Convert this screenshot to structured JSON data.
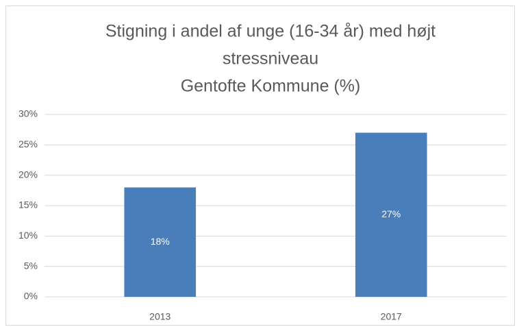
{
  "chart_data": {
    "type": "bar",
    "title": [
      "Stigning i andel af unge (16-34 år) med højt",
      "stressniveau",
      "Gentofte Kommune (%)"
    ],
    "categories": [
      "2013",
      "2017"
    ],
    "values": [
      18,
      27
    ],
    "value_labels": [
      "18%",
      "27%"
    ],
    "color": "#4a7ebb",
    "ylim": [
      0,
      30
    ],
    "yticks": [
      {
        "value": 0,
        "label": "0%"
      },
      {
        "value": 5,
        "label": "5%"
      },
      {
        "value": 10,
        "label": "10%"
      },
      {
        "value": 15,
        "label": "15%"
      },
      {
        "value": 20,
        "label": "20%"
      },
      {
        "value": 25,
        "label": "25%"
      },
      {
        "value": 30,
        "label": "30%"
      }
    ],
    "grid": true
  }
}
